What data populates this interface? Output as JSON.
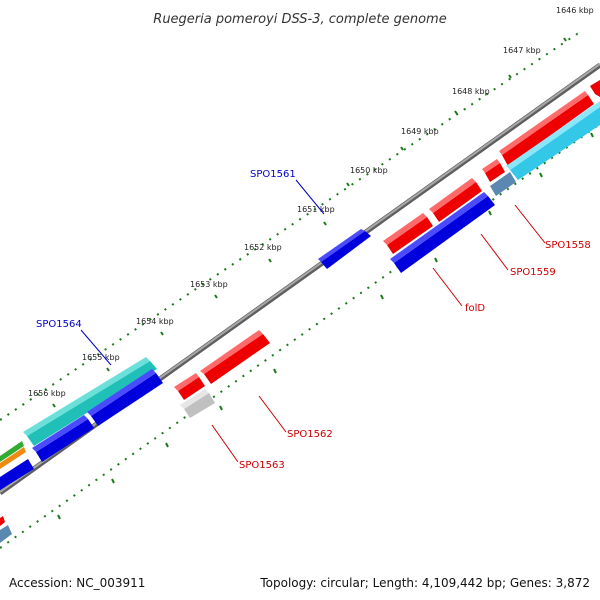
{
  "title": "Ruegeria pomeroyi DSS-3, complete genome",
  "tick_labels": [
    "1646 kbp",
    "1647 kbp",
    "1648 kbp",
    "1649 kbp",
    "1650 kbp",
    "1651 kbp",
    "1652 kbp",
    "1653 kbp",
    "1654 kbp",
    "1655 kbp",
    "1656 kbp"
  ],
  "gene_labels": [
    {
      "name": "SPO1561",
      "color": "#0000cc"
    },
    {
      "name": "SPO1564",
      "color": "#0000cc"
    },
    {
      "name": "SPO1558",
      "color": "#cc0000"
    },
    {
      "name": "SPO1559",
      "color": "#cc0000"
    },
    {
      "name": "folD",
      "color": "#cc0000"
    },
    {
      "name": "SPO1562",
      "color": "#cc0000"
    },
    {
      "name": "SPO1563",
      "color": "#cc0000"
    }
  ],
  "colors": {
    "backbone": "#808080",
    "tick_dots": "#1a7a1a",
    "forward_cds": "#ee0000",
    "reverse_cds": "#0000dd",
    "cyan_feature": "#33c8e8",
    "teal_feature": "#20c0b8",
    "grey_feature": "#c8c8c8",
    "steel_feature": "#5a88b0"
  },
  "footer": {
    "accession": "Accession: NC_003911",
    "summary": "Topology: circular; Length: 4,109,442 bp; Genes: 3,872"
  }
}
